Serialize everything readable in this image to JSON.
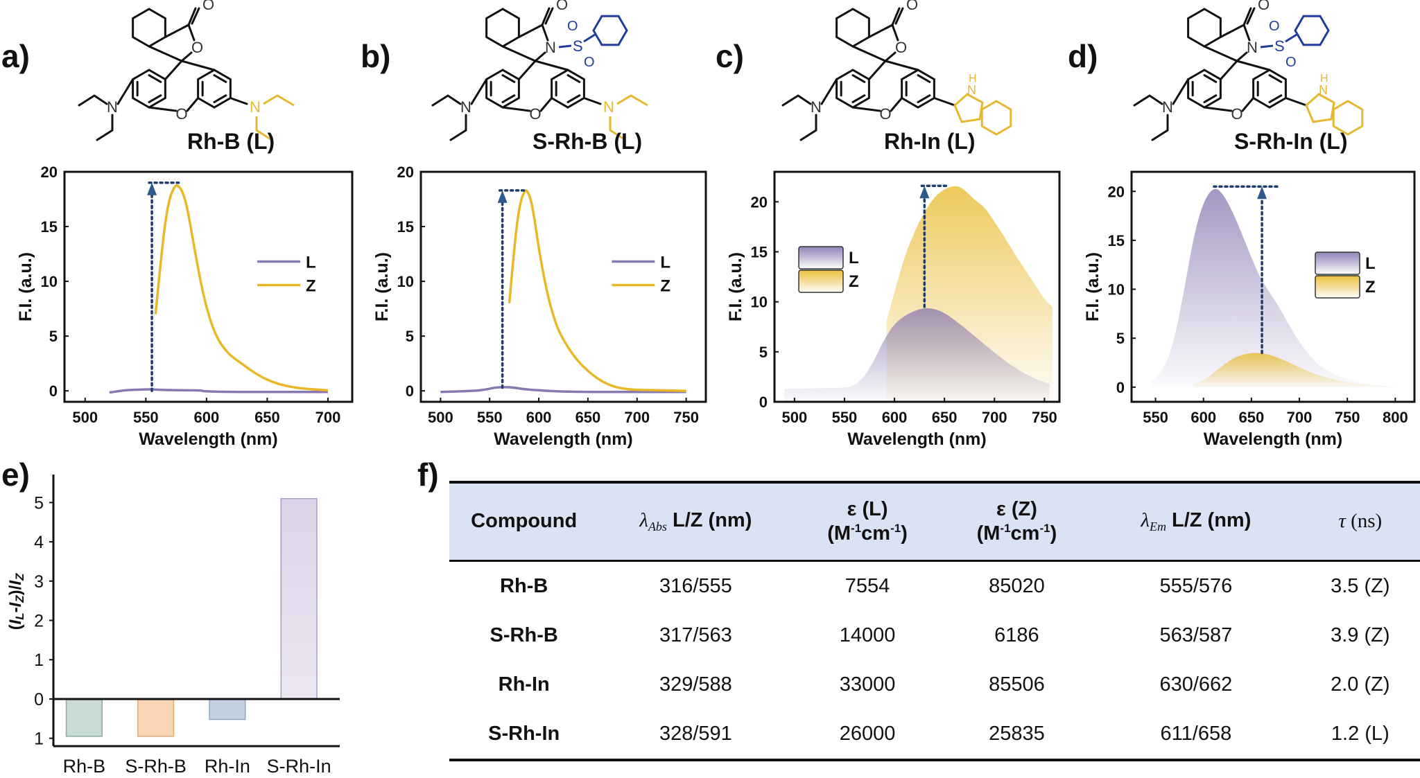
{
  "panel_labels": [
    "a)",
    "b)",
    "c)",
    "d)",
    "e)",
    "f)"
  ],
  "molecules": [
    {
      "name": "Rh-B (L)",
      "ring_closure": "O",
      "right_substituent": "NEt2",
      "sulfonyl": false
    },
    {
      "name": "S-Rh-B (L)",
      "ring_closure": "N",
      "right_substituent": "NEt2",
      "sulfonyl": true
    },
    {
      "name": "Rh-In (L)",
      "ring_closure": "O",
      "right_substituent": "indole",
      "sulfonyl": false
    },
    {
      "name": "S-Rh-In (L)",
      "ring_closure": "N",
      "right_substituent": "indole",
      "sulfonyl": true
    }
  ],
  "atom_labels": {
    "O": "O",
    "N": "N",
    "S": "S",
    "H": "H"
  },
  "colors": {
    "L": "#8878b0",
    "Z": "#e8b828",
    "arrow": "#1f3d6e",
    "sulfonyl": "#1e3c9a",
    "highlight": "#e5b830",
    "table_header_bg": "#dae3f3"
  },
  "chart_data": [
    {
      "id": "a",
      "type": "line",
      "xlabel": "Wavelength (nm)",
      "ylabel": "F.I. (a.u.)",
      "xlim": [
        483,
        720
      ],
      "ylim": [
        -1,
        20
      ],
      "xticks": [
        500,
        550,
        600,
        650,
        700
      ],
      "yticks": [
        0,
        5,
        10,
        15,
        20
      ],
      "legend": [
        "L",
        "Z"
      ],
      "legend_position": "right",
      "arrow": {
        "x": 555,
        "from": 0,
        "to": 19
      },
      "series": [
        {
          "name": "L",
          "x": [
            520,
            532,
            540,
            555,
            560,
            580,
            595,
            598,
            620,
            650,
            700
          ],
          "y": [
            -0.15,
            0.05,
            0.1,
            0.15,
            0.1,
            0.05,
            0.05,
            -0.05,
            -0.1,
            -0.1,
            -0.1
          ]
        },
        {
          "name": "Z",
          "x": [
            558,
            562,
            566,
            570,
            574,
            576,
            580,
            584,
            588,
            592,
            596,
            600,
            605,
            610,
            615,
            620,
            630,
            640,
            650,
            660,
            670,
            680,
            690,
            700
          ],
          "y": [
            7,
            11.5,
            15.5,
            17.8,
            18.7,
            18.8,
            18.3,
            16.8,
            14.3,
            11.8,
            9.5,
            7.6,
            5.8,
            4.6,
            3.8,
            3.2,
            2.4,
            1.6,
            1.0,
            0.6,
            0.35,
            0.2,
            0.12,
            0.05
          ]
        }
      ]
    },
    {
      "id": "b",
      "type": "line",
      "xlabel": "Wavelength (nm)",
      "ylabel": "F.I. (a.u.)",
      "xlim": [
        480,
        770
      ],
      "ylim": [
        -1,
        20
      ],
      "xticks": [
        500,
        550,
        600,
        650,
        700,
        750
      ],
      "yticks": [
        0,
        5,
        10,
        15,
        20
      ],
      "legend": [
        "L",
        "Z"
      ],
      "legend_position": "right",
      "arrow": {
        "x": 563,
        "from": 0.3,
        "to": 18.3
      },
      "series": [
        {
          "name": "L",
          "x": [
            500,
            535,
            545,
            555,
            565,
            575,
            585,
            600,
            620,
            650,
            700,
            750
          ],
          "y": [
            -0.1,
            0,
            0.1,
            0.3,
            0.35,
            0.3,
            0.15,
            0.05,
            -0.05,
            -0.1,
            -0.1,
            -0.1
          ]
        },
        {
          "name": "Z",
          "x": [
            570,
            574,
            578,
            582,
            586,
            588,
            592,
            596,
            600,
            605,
            610,
            615,
            620,
            630,
            640,
            650,
            660,
            670,
            680,
            690,
            700,
            720,
            750
          ],
          "y": [
            8,
            12,
            15.5,
            17.5,
            18.3,
            18.3,
            17.5,
            15.5,
            13,
            10.5,
            8.4,
            6.8,
            5.5,
            3.9,
            2.7,
            1.8,
            1.1,
            0.6,
            0.3,
            0.15,
            0.1,
            0.05,
            0
          ]
        }
      ]
    },
    {
      "id": "c",
      "type": "area",
      "xlabel": "Wavelength (nm)",
      "ylabel": "F.I. (a.u.)",
      "xlim": [
        480,
        765
      ],
      "ylim": [
        0,
        23
      ],
      "xticks": [
        500,
        550,
        600,
        650,
        700,
        750
      ],
      "yticks": [
        0,
        5,
        10,
        15,
        20
      ],
      "legend": [
        "L",
        "Z"
      ],
      "legend_position": "left",
      "arrow": {
        "x": 630,
        "from": 9.5,
        "to": 21.6
      },
      "series": [
        {
          "name": "Z",
          "x": [
            592,
            600,
            610,
            620,
            630,
            640,
            650,
            660,
            665,
            670,
            680,
            690,
            700,
            710,
            720,
            730,
            740,
            750,
            758
          ],
          "y": [
            8,
            11,
            14.5,
            17,
            19,
            20.5,
            21.3,
            21.6,
            21.5,
            21.2,
            20.2,
            19.5,
            18,
            16.5,
            14.8,
            13.3,
            11.8,
            10.2,
            9.5
          ]
        },
        {
          "name": "L",
          "x": [
            490,
            520,
            550,
            560,
            570,
            580,
            590,
            600,
            610,
            620,
            630,
            640,
            650,
            660,
            680,
            700,
            720,
            740,
            755
          ],
          "y": [
            1.3,
            1.35,
            1.4,
            1.6,
            2.5,
            4.2,
            6.3,
            7.8,
            8.6,
            9.1,
            9.4,
            9.3,
            8.9,
            8.2,
            6.6,
            4.9,
            3.4,
            2.3,
            1.8
          ]
        }
      ]
    },
    {
      "id": "d",
      "type": "area",
      "xlabel": "Wavelength (nm)",
      "ylabel": "F.I. (a.u.)",
      "xlim": [
        525,
        820
      ],
      "ylim": [
        -1.5,
        22
      ],
      "xticks": [
        550,
        600,
        650,
        700,
        750,
        800
      ],
      "yticks": [
        0,
        5,
        10,
        15,
        20
      ],
      "legend": [
        "L",
        "Z"
      ],
      "legend_position": "right",
      "arrow": {
        "x": 661,
        "from": 3.5,
        "to": 20.5
      },
      "series": [
        {
          "name": "L",
          "x": [
            545,
            560,
            570,
            580,
            590,
            600,
            611,
            620,
            630,
            640,
            650,
            660,
            670,
            680,
            690,
            700,
            710,
            720,
            740,
            760,
            780,
            800
          ],
          "y": [
            0.5,
            2,
            5,
            10,
            15.5,
            19,
            20.5,
            19.8,
            18,
            15.7,
            13.2,
            11,
            9.5,
            8,
            6.2,
            4.6,
            3.3,
            2.2,
            1.1,
            0.5,
            0.2,
            0
          ]
        },
        {
          "name": "Z",
          "x": [
            590,
            600,
            610,
            620,
            630,
            640,
            650,
            658,
            670,
            680,
            690,
            700,
            710,
            720,
            740,
            760,
            780,
            800
          ],
          "y": [
            0.3,
            0.7,
            1.4,
            2.2,
            2.9,
            3.3,
            3.5,
            3.5,
            3.3,
            2.9,
            2.5,
            2,
            1.6,
            1.2,
            0.7,
            0.35,
            0.15,
            0.05
          ]
        }
      ]
    },
    {
      "id": "e",
      "type": "bar",
      "ylabel": "(I_L-I_Z)/I_Z",
      "ylabel_parts": {
        "open": "(",
        "I1": "I",
        "sub1": "L",
        "minus": "-",
        "I2": "I",
        "sub2": "Z",
        "close": ")/",
        "I3": "I",
        "sub3": "Z"
      },
      "categories": [
        "Rh-B",
        "S-Rh-B",
        "Rh-In",
        "S-Rh-In"
      ],
      "values": [
        -0.95,
        -0.95,
        -0.52,
        5.1
      ],
      "bar_colors": [
        "#c9dcd3",
        "#f7d5b5",
        "#c4d1e3",
        "#dcd3e8"
      ],
      "bar_edge_colors": [
        "#8aa89a",
        "#e0aa78",
        "#8ea3c0",
        "#a89cc4"
      ],
      "ylim": [
        -1.2,
        5.8
      ],
      "yticks": [
        0,
        1,
        2,
        3,
        4,
        5
      ],
      "ytick_labels_negative": [
        {
          "value": -1,
          "label": "1"
        }
      ]
    }
  ],
  "table": {
    "headers": [
      {
        "main": "Compound"
      },
      {
        "greek": "λ",
        "sub": "Abs",
        "main": " L/Z (nm)"
      },
      {
        "line1": "ε (L)",
        "line2_pre": "(M",
        "sup1": "-1",
        "mid": "cm",
        "sup2": "-1",
        "post": ")"
      },
      {
        "line1": "ε (Z)",
        "line2_pre": "(M",
        "sup1": "-1",
        "mid": "cm",
        "sup2": "-1",
        "post": ")"
      },
      {
        "greek": "λ",
        "sub": "Em",
        "main": " L/Z (nm)"
      },
      {
        "greek": "τ",
        "main": " (ns)"
      }
    ],
    "rows": [
      [
        "Rh-B",
        "316/555",
        "7554",
        "85020",
        "555/576",
        "3.5 (Z)"
      ],
      [
        "S-Rh-B",
        "317/563",
        "14000",
        "6186",
        "563/587",
        "3.9 (Z)"
      ],
      [
        "Rh-In",
        "329/588",
        "33000",
        "85506",
        "630/662",
        "2.0 (Z)"
      ],
      [
        "S-Rh-In",
        "328/591",
        "26000",
        "25835",
        "611/658",
        "1.2 (L)"
      ]
    ]
  }
}
